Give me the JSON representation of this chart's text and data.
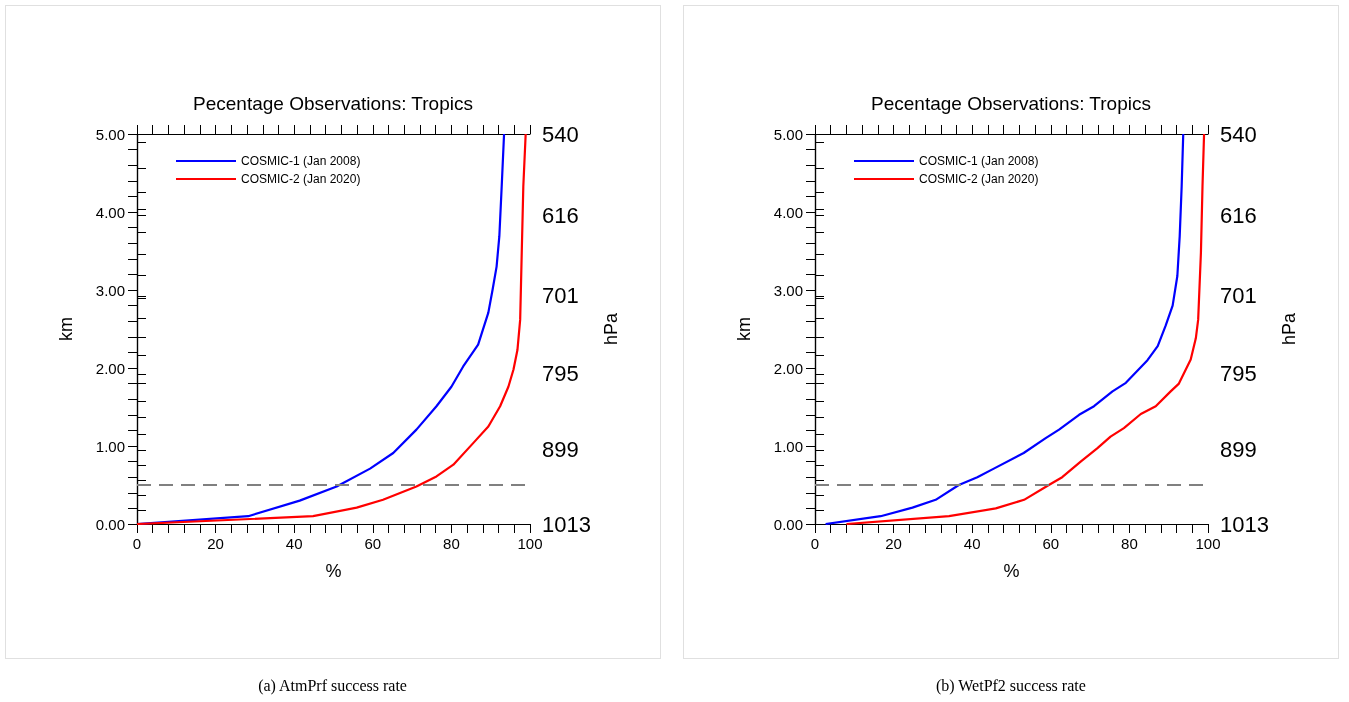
{
  "chart_data": [
    {
      "type": "line",
      "title": "Pecentage Observations: Tropics",
      "xlabel": "%",
      "ylabel": "km",
      "y2label": "hPa",
      "annotations": [
        "(a) AtmPrf success rate"
      ],
      "xlim": [
        0,
        100
      ],
      "xticks": [
        0,
        20,
        40,
        60,
        80,
        100
      ],
      "ylim": [
        0,
        5
      ],
      "yticks": [
        {
          "value": 0,
          "label": "0.00"
        },
        {
          "value": 1,
          "label": "1.00"
        },
        {
          "value": 2,
          "label": "2.00"
        },
        {
          "value": 3,
          "label": "3.00"
        },
        {
          "value": 4,
          "label": "4.00"
        },
        {
          "value": 5,
          "label": "5.00"
        }
      ],
      "y2lim": [
        1013,
        540
      ],
      "y2ticks": [
        1013,
        899,
        795,
        701,
        616,
        540
      ],
      "log": "y2",
      "grid": false,
      "legend": "top left",
      "marker": "none",
      "ref_lines": [
        {
          "axis": "y",
          "value": 0.5,
          "color": "#808080",
          "line_style": "dashed"
        }
      ],
      "series": [
        {
          "name": "COSMIC-1 (Jan 2008)",
          "color": "#0000ff",
          "x": [
            0,
            28.3,
            41.4,
            50.8,
            59.3,
            65.2,
            71.1,
            76.2,
            80.0,
            83.0,
            86.8,
            89.4,
            90.5,
            91.5,
            92.2,
            92.8,
            93.4
          ],
          "values": [
            0,
            0.1,
            0.3,
            0.48,
            0.71,
            0.91,
            1.21,
            1.51,
            1.76,
            2.02,
            2.3,
            2.71,
            3.01,
            3.3,
            3.69,
            4.33,
            5
          ]
        },
        {
          "name": "COSMIC-2 (Jan 2020)",
          "color": "#ff0000",
          "x": [
            0,
            44.8,
            55.9,
            62.6,
            71.1,
            76.2,
            80.5,
            85.6,
            89.4,
            92.4,
            94.5,
            95.8,
            96.8,
            97.5,
            97.9,
            98.3,
            98.9
          ],
          "values": [
            0,
            0.1,
            0.21,
            0.31,
            0.48,
            0.61,
            0.76,
            1.04,
            1.25,
            1.51,
            1.76,
            1.98,
            2.23,
            2.62,
            3.48,
            4.33,
            5
          ]
        }
      ]
    },
    {
      "type": "line",
      "title": "Pecentage Observations: Tropics",
      "xlabel": "%",
      "ylabel": "km",
      "y2label": "hPa",
      "annotations": [
        "(b) WetPf2 success rate"
      ],
      "xlim": [
        0,
        100
      ],
      "xticks": [
        0,
        20,
        40,
        60,
        80,
        100
      ],
      "ylim": [
        0,
        5
      ],
      "yticks": [
        {
          "value": 0,
          "label": "0.00"
        },
        {
          "value": 1,
          "label": "1.00"
        },
        {
          "value": 2,
          "label": "2.00"
        },
        {
          "value": 3,
          "label": "3.00"
        },
        {
          "value": 4,
          "label": "4.00"
        },
        {
          "value": 5,
          "label": "5.00"
        }
      ],
      "y2lim": [
        1013,
        540
      ],
      "y2ticks": [
        1013,
        899,
        795,
        701,
        616,
        540
      ],
      "log": "y2",
      "grid": false,
      "legend": "top left",
      "marker": "none",
      "ref_lines": [
        {
          "axis": "y",
          "value": 0.5,
          "color": "#808080",
          "line_style": "dashed"
        }
      ],
      "series": [
        {
          "name": "COSMIC-1 (Jan 2008)",
          "color": "#0000ff",
          "x": [
            2.7,
            16.7,
            24.8,
            30.7,
            36.6,
            41.3,
            45.5,
            53.1,
            58.7,
            62.1,
            67.2,
            71.0,
            75.7,
            79.1,
            84.6,
            87.2,
            89.2,
            91.0,
            92.2,
            92.8,
            93.3,
            93.7
          ],
          "values": [
            0,
            0.1,
            0.21,
            0.31,
            0.5,
            0.6,
            0.71,
            0.91,
            1.1,
            1.21,
            1.4,
            1.51,
            1.7,
            1.81,
            2.1,
            2.28,
            2.54,
            2.8,
            3.18,
            3.69,
            4.33,
            5
          ]
        },
        {
          "name": "COSMIC-2 (Jan 2020)",
          "color": "#ff0000",
          "x": [
            8.0,
            34.1,
            46.0,
            53.2,
            59.5,
            62.9,
            67.6,
            71.8,
            75.2,
            78.6,
            82.9,
            86.7,
            90.5,
            92.6,
            95.6,
            96.9,
            97.5,
            98.2,
            98.6,
            99.0
          ],
          "values": [
            0,
            0.1,
            0.2,
            0.31,
            0.5,
            0.6,
            0.8,
            0.97,
            1.12,
            1.23,
            1.41,
            1.51,
            1.7,
            1.8,
            2.11,
            2.38,
            2.62,
            3.48,
            4.33,
            5
          ]
        }
      ]
    }
  ]
}
